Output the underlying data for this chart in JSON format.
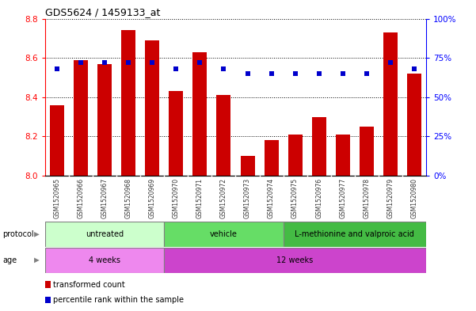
{
  "title": "GDS5624 / 1459133_at",
  "samples": [
    "GSM1520965",
    "GSM1520966",
    "GSM1520967",
    "GSM1520968",
    "GSM1520969",
    "GSM1520970",
    "GSM1520971",
    "GSM1520972",
    "GSM1520973",
    "GSM1520974",
    "GSM1520975",
    "GSM1520976",
    "GSM1520977",
    "GSM1520978",
    "GSM1520979",
    "GSM1520980"
  ],
  "transformed_count": [
    8.36,
    8.59,
    8.57,
    8.74,
    8.69,
    8.43,
    8.63,
    8.41,
    8.1,
    8.18,
    8.21,
    8.3,
    8.21,
    8.25,
    8.73,
    8.52
  ],
  "percentile_rank": [
    68,
    72,
    72,
    72,
    72,
    68,
    72,
    68,
    65,
    65,
    65,
    65,
    65,
    65,
    72,
    68
  ],
  "bar_color": "#cc0000",
  "dot_color": "#0000cc",
  "ylim_left": [
    8.0,
    8.8
  ],
  "ylim_right": [
    0,
    100
  ],
  "yticks_left": [
    8.0,
    8.2,
    8.4,
    8.6,
    8.8
  ],
  "yticks_right": [
    0,
    25,
    50,
    75,
    100
  ],
  "protocol_groups": [
    {
      "label": "untreated",
      "start": 0,
      "end": 4,
      "color": "#ccffcc"
    },
    {
      "label": "vehicle",
      "start": 5,
      "end": 9,
      "color": "#66dd66"
    },
    {
      "label": "L-methionine and valproic acid",
      "start": 10,
      "end": 15,
      "color": "#44bb44"
    }
  ],
  "age_groups": [
    {
      "label": "4 weeks",
      "start": 0,
      "end": 4,
      "color": "#ee88ee"
    },
    {
      "label": "12 weeks",
      "start": 5,
      "end": 15,
      "color": "#dd44dd"
    }
  ],
  "legend_items": [
    {
      "color": "#cc0000",
      "label": "transformed count"
    },
    {
      "color": "#0000cc",
      "label": "percentile rank within the sample"
    }
  ]
}
